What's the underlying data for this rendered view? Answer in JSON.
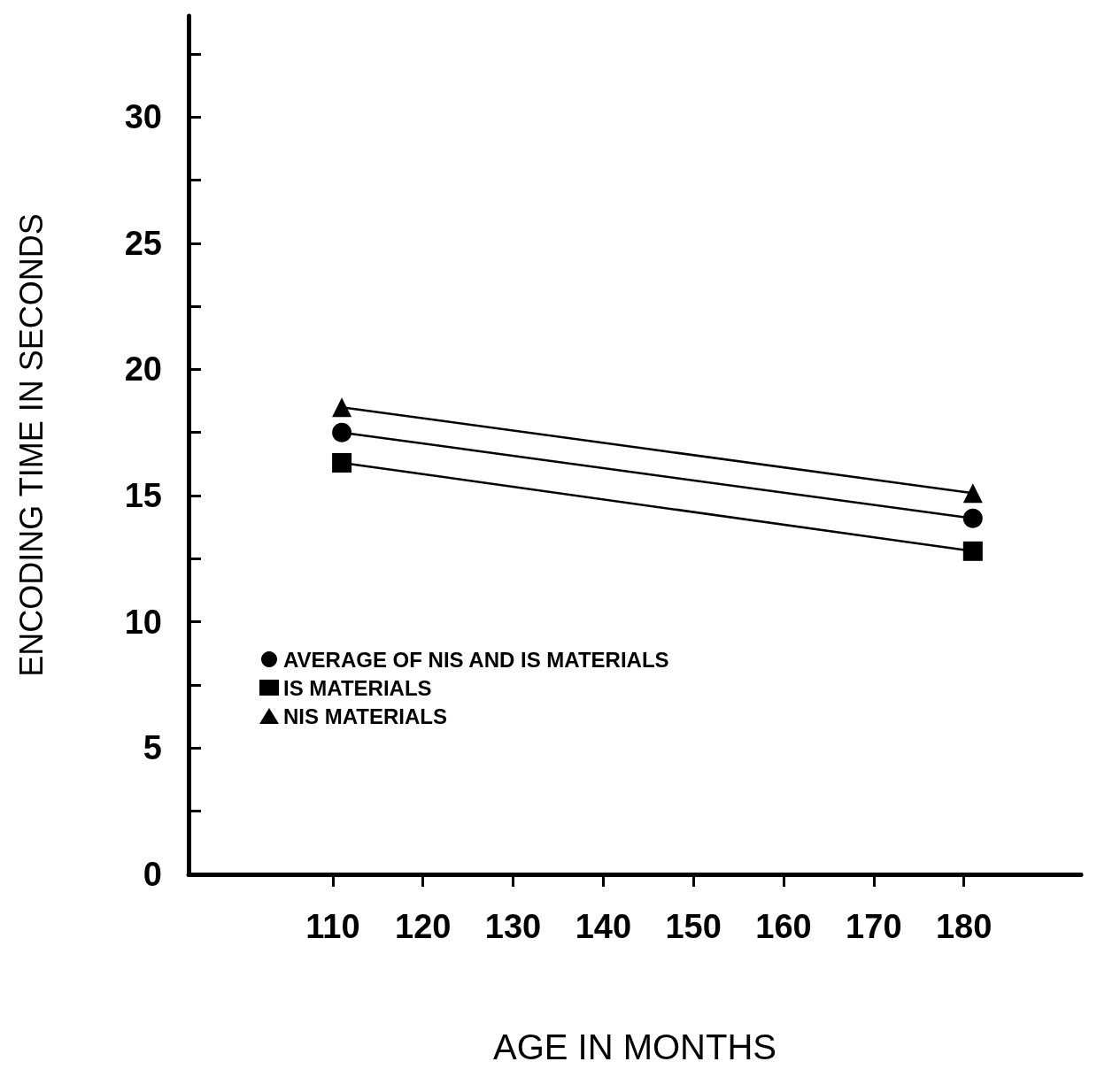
{
  "chart_data": {
    "type": "line",
    "xlabel": "AGE IN MONTHS",
    "ylabel": "ENCODING TIME IN SECONDS",
    "x": [
      111,
      181
    ],
    "series": [
      {
        "name": "AVERAGE OF NIS AND IS MATERIALS",
        "color": "#000000",
        "marker": "circle",
        "values": [
          17.5,
          14.1
        ]
      },
      {
        "name": "IS MATERIALS",
        "color": "#000000",
        "marker": "square",
        "values": [
          16.3,
          12.8
        ]
      },
      {
        "name": "NIS MATERIALS",
        "color": "#000000",
        "marker": "triangle",
        "values": [
          18.5,
          15.1
        ]
      }
    ],
    "xlim": [
      94,
      193
    ],
    "xticks": [
      110,
      120,
      130,
      140,
      150,
      160,
      170,
      180
    ],
    "ylim": [
      0,
      34
    ],
    "yticks": [
      0,
      {
        "value": 2.5,
        "label": null
      },
      5,
      {
        "value": 7.5,
        "label": null
      },
      10,
      {
        "value": 12.5,
        "label": null
      },
      15,
      {
        "value": 17.5,
        "label": null
      },
      20,
      {
        "value": 22.5,
        "label": null
      },
      25,
      {
        "value": 27.5,
        "label": null
      },
      30,
      {
        "value": 32.5,
        "label": null
      }
    ],
    "grid": false,
    "legend": "left",
    "line_style": "solid"
  }
}
